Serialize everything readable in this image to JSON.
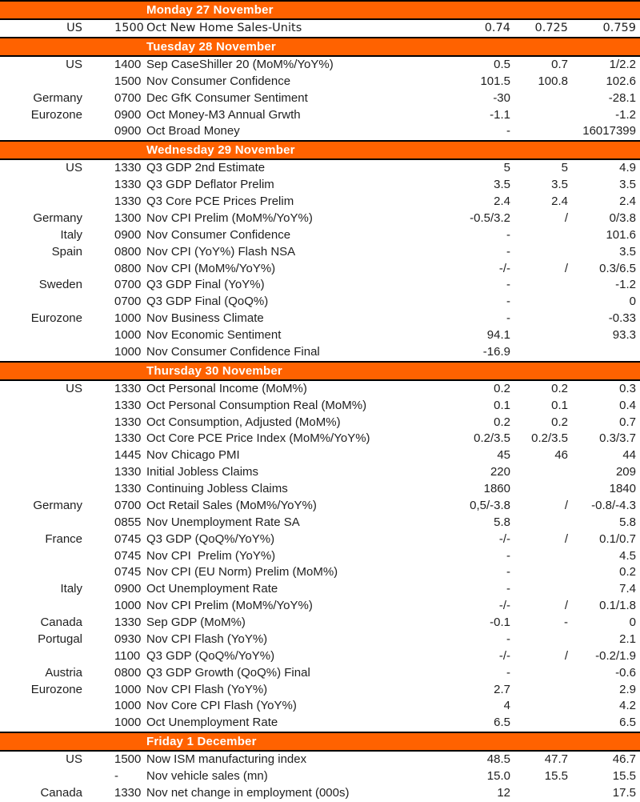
{
  "colors": {
    "band_bg": "#FF6200",
    "band_text": "#FFFFFF",
    "text": "#1F1F1F",
    "rule": "#000000"
  },
  "calendar": {
    "days": [
      {
        "title": "Monday 27 November",
        "rows": [
          {
            "country": "US",
            "time": "1500",
            "event": "Oct New Home Sales-Units",
            "values": [
              "0.74",
              "0.725",
              "0.759"
            ]
          }
        ]
      },
      {
        "title": "Tuesday 28 November",
        "rows": [
          {
            "country": "US",
            "time": "1400",
            "event": "Sep CaseShiller 20 (MoM%/YoY%)",
            "values": [
              "0.5",
              "0.7",
              "1/2.2"
            ]
          },
          {
            "country": "",
            "time": "1500",
            "event": "Nov Consumer Confidence",
            "values": [
              "101.5",
              "100.8",
              "102.6"
            ]
          },
          {
            "country": "Germany",
            "time": "0700",
            "event": "Dec GfK Consumer Sentiment",
            "values": [
              "-30",
              "",
              "-28.1"
            ]
          },
          {
            "country": "Eurozone",
            "time": "0900",
            "event": "Oct Money-M3 Annual Grwth",
            "values": [
              "-1.1",
              "",
              "-1.2"
            ]
          },
          {
            "country": "",
            "time": "0900",
            "event": "Oct Broad Money",
            "values": [
              "-",
              "",
              "16017399"
            ]
          }
        ]
      },
      {
        "title": "Wednesday 29 November",
        "rows": [
          {
            "country": "US",
            "time": "1330",
            "event": "Q3 GDP 2nd Estimate",
            "values": [
              "5",
              "5",
              "4.9"
            ]
          },
          {
            "country": "",
            "time": "1330",
            "event": "Q3 GDP Deflator Prelim",
            "values": [
              "3.5",
              "3.5",
              "3.5"
            ]
          },
          {
            "country": "",
            "time": "1330",
            "event": "Q3 Core PCE Prices Prelim",
            "values": [
              "2.4",
              "2.4",
              "2.4"
            ]
          },
          {
            "country": "Germany",
            "time": "1300",
            "event": "Nov CPI Prelim (MoM%/YoY%)",
            "values": [
              "-0.5/3.2",
              "/",
              "0/3.8"
            ]
          },
          {
            "country": "Italy",
            "time": "0900",
            "event": "Nov Consumer Confidence",
            "values": [
              "-",
              "",
              "101.6"
            ]
          },
          {
            "country": "Spain",
            "time": "0800",
            "event": "Nov CPI (YoY%) Flash NSA",
            "values": [
              "-",
              "",
              "3.5"
            ]
          },
          {
            "country": "",
            "time": "0800",
            "event": "Nov CPI (MoM%/YoY%)",
            "values": [
              "-/-",
              "/",
              "0.3/6.5"
            ]
          },
          {
            "country": "Sweden",
            "time": "0700",
            "event": "Q3 GDP Final (YoY%)",
            "values": [
              "-",
              "",
              "-1.2"
            ]
          },
          {
            "country": "",
            "time": "0700",
            "event": "Q3 GDP Final (QoQ%)",
            "values": [
              "-",
              "",
              "0"
            ]
          },
          {
            "country": "Eurozone",
            "time": "1000",
            "event": "Nov Business Climate",
            "values": [
              "-",
              "",
              "-0.33"
            ]
          },
          {
            "country": "",
            "time": "1000",
            "event": "Nov Economic Sentiment",
            "values": [
              "94.1",
              "",
              "93.3"
            ]
          },
          {
            "country": "",
            "time": "1000",
            "event": "Nov Consumer Confidence Final",
            "values": [
              "-16.9",
              "",
              ""
            ]
          }
        ]
      },
      {
        "title": "Thursday 30 November",
        "rows": [
          {
            "country": "US",
            "time": "1330",
            "event": "Oct Personal Income (MoM%)",
            "values": [
              "0.2",
              "0.2",
              "0.3"
            ]
          },
          {
            "country": "",
            "time": "1330",
            "event": "Oct Personal Consumption Real (MoM%)",
            "values": [
              "0.1",
              "0.1",
              "0.4"
            ]
          },
          {
            "country": "",
            "time": "1330",
            "event": "Oct Consumption, Adjusted (MoM%)",
            "values": [
              "0.2",
              "0.2",
              "0.7"
            ]
          },
          {
            "country": "",
            "time": "1330",
            "event": "Oct Core PCE Price Index (MoM%/YoY%)",
            "values": [
              "0.2/3.5",
              "0.2/3.5",
              "0.3/3.7"
            ]
          },
          {
            "country": "",
            "time": "1445",
            "event": "Nov Chicago PMI",
            "values": [
              "45",
              "46",
              "44"
            ]
          },
          {
            "country": "",
            "time": "1330",
            "event": "Initial Jobless Claims",
            "values": [
              "220",
              "",
              "209"
            ]
          },
          {
            "country": "",
            "time": "1330",
            "event": "Continuing Jobless Claims",
            "values": [
              "1860",
              "",
              "1840"
            ]
          },
          {
            "country": "Germany",
            "time": "0700",
            "event": "Oct Retail Sales (MoM%/YoY%)",
            "values": [
              "0,5/-3.8",
              "/",
              "-0.8/-4.3"
            ]
          },
          {
            "country": "",
            "time": "0855",
            "event": "Nov Unemployment Rate SA",
            "values": [
              "5.8",
              "",
              "5.8"
            ]
          },
          {
            "country": "France",
            "time": "0745",
            "event": "Q3 GDP (QoQ%/YoY%)",
            "values": [
              "-/-",
              "/",
              "0.1/0.7"
            ]
          },
          {
            "country": "",
            "time": "0745",
            "event": "Nov CPI  Prelim (YoY%)",
            "values": [
              "-",
              "",
              "4.5"
            ]
          },
          {
            "country": "",
            "time": "0745",
            "event": "Nov CPI (EU Norm) Prelim (MoM%)",
            "values": [
              "-",
              "",
              "0.2"
            ]
          },
          {
            "country": "Italy",
            "time": "0900",
            "event": "Oct Unemployment Rate",
            "values": [
              "-",
              "",
              "7.4"
            ]
          },
          {
            "country": "",
            "time": "1000",
            "event": "Nov CPI Prelim (MoM%/YoY%)",
            "values": [
              "-/-",
              "/",
              "0.1/1.8"
            ]
          },
          {
            "country": "Canada",
            "time": "1330",
            "event": "Sep GDP (MoM%)",
            "values": [
              "-0.1",
              "-",
              "0"
            ]
          },
          {
            "country": "Portugal",
            "time": "0930",
            "event": "Nov CPI Flash (YoY%)",
            "values": [
              "-",
              "",
              "2.1"
            ]
          },
          {
            "country": "",
            "time": "1100",
            "event": "Q3 GDP (QoQ%/YoY%)",
            "values": [
              "-/-",
              "/",
              "-0.2/1.9"
            ]
          },
          {
            "country": "Austria",
            "time": "0800",
            "event": "Q3 GDP Growth (QoQ%) Final",
            "values": [
              "-",
              "",
              "-0.6"
            ]
          },
          {
            "country": "Eurozone",
            "time": "1000",
            "event": "Nov CPI Flash (YoY%)",
            "values": [
              "2.7",
              "",
              "2.9"
            ]
          },
          {
            "country": "",
            "time": "1000",
            "event": "Nov Core CPI Flash (YoY%)",
            "values": [
              "4",
              "",
              "4.2"
            ]
          },
          {
            "country": "",
            "time": "1000",
            "event": "Oct Unemployment Rate",
            "values": [
              "6.5",
              "",
              "6.5"
            ]
          }
        ]
      },
      {
        "title": "Friday 1 December",
        "rows": [
          {
            "country": "US",
            "time": "1500",
            "event": "Now ISM manufacturing index",
            "values": [
              "48.5",
              "47.7",
              "46.7"
            ]
          },
          {
            "country": "",
            "time": "-",
            "event": "Nov vehicle sales (mn)",
            "values": [
              "15.0",
              "15.5",
              "15.5"
            ]
          },
          {
            "country": "Canada",
            "time": "1330",
            "event": "Nov net change in employment (000s)",
            "values": [
              "12",
              "",
              "17.5"
            ]
          }
        ]
      }
    ]
  }
}
